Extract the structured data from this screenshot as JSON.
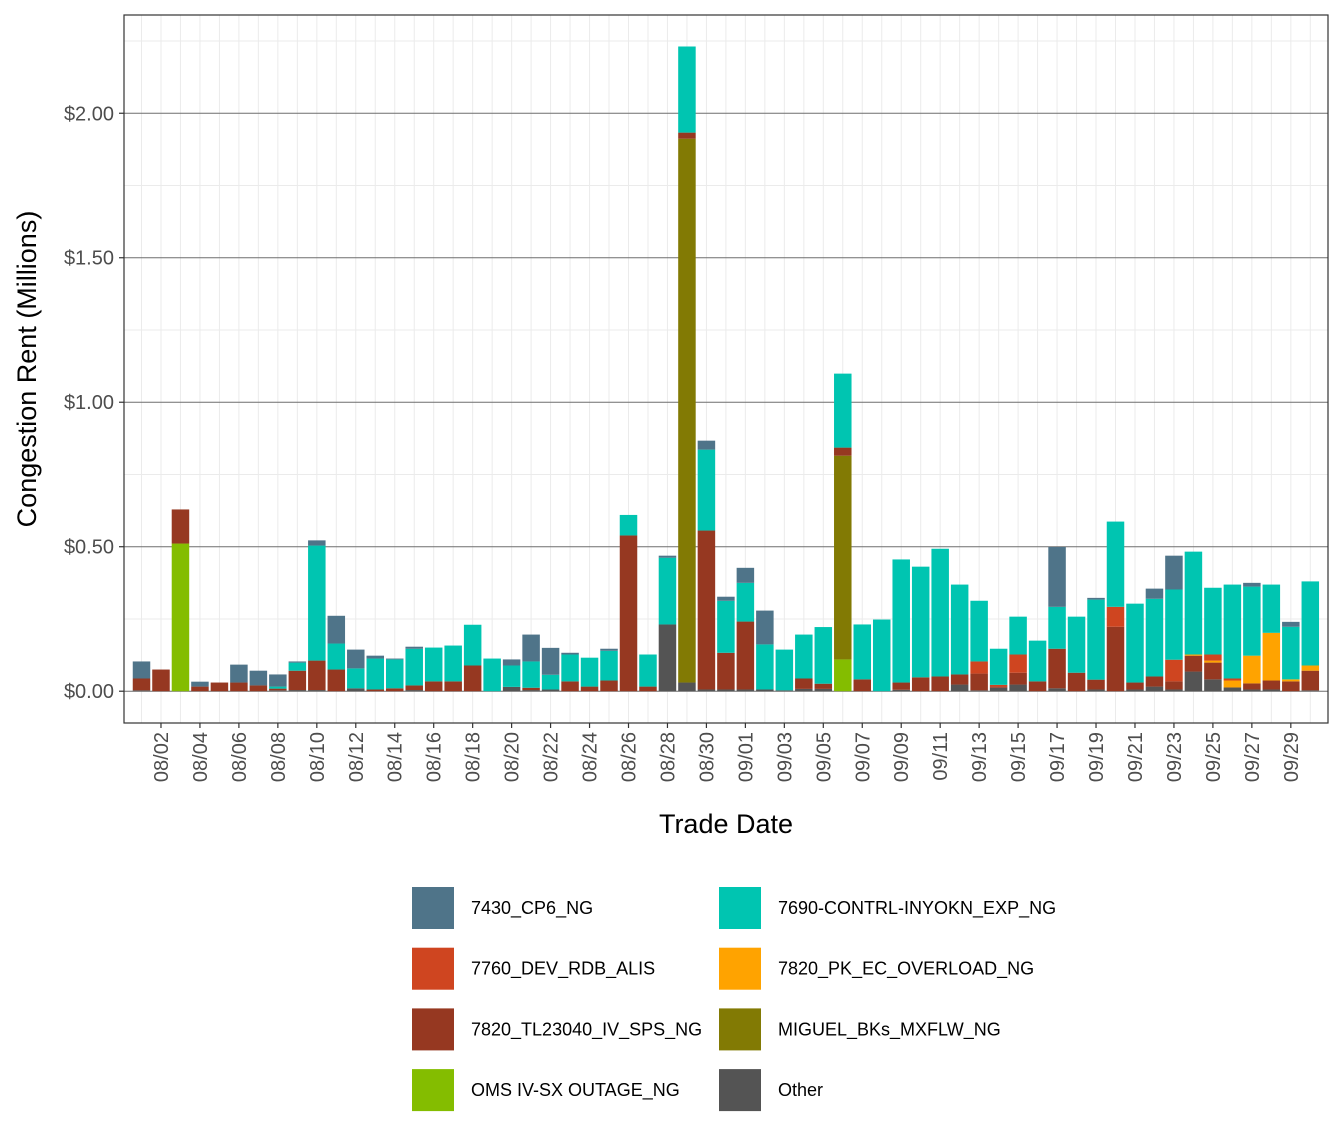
{
  "chart_data": {
    "type": "bar",
    "stacked": true,
    "xlabel": "Trade Date",
    "ylabel": "Congestion Rent (Millions)",
    "ylim": [
      -0.11,
      2.34
    ],
    "yticks": [
      0,
      0.5,
      1.0,
      1.5,
      2.0
    ],
    "ytick_labels": [
      "$0.00",
      "$0.50",
      "$1.00",
      "$1.50",
      "$2.00"
    ],
    "grid": true,
    "legend_position": "bottom",
    "categories": [
      "08/01",
      "08/02",
      "08/03",
      "08/04",
      "08/05",
      "08/06",
      "08/07",
      "08/08",
      "08/09",
      "08/10",
      "08/11",
      "08/12",
      "08/13",
      "08/14",
      "08/15",
      "08/16",
      "08/17",
      "08/18",
      "08/19",
      "08/20",
      "08/21",
      "08/22",
      "08/23",
      "08/24",
      "08/25",
      "08/26",
      "08/27",
      "08/28",
      "08/29",
      "08/30",
      "08/31",
      "09/01",
      "09/02",
      "09/03",
      "09/04",
      "09/05",
      "09/06",
      "09/07",
      "09/08",
      "09/09",
      "09/10",
      "09/11",
      "09/12",
      "09/13",
      "09/14",
      "09/15",
      "09/16",
      "09/17",
      "09/18",
      "09/19",
      "09/20",
      "09/21",
      "09/22",
      "09/23",
      "09/24",
      "09/25",
      "09/26",
      "09/27",
      "09/28",
      "09/29",
      "09/30"
    ],
    "xtick_labels": [
      "08/02",
      "08/04",
      "08/06",
      "08/08",
      "08/10",
      "08/12",
      "08/14",
      "08/16",
      "08/18",
      "08/20",
      "08/22",
      "08/24",
      "08/26",
      "08/28",
      "08/30",
      "09/01",
      "09/03",
      "09/05",
      "09/07",
      "09/09",
      "09/11",
      "09/13",
      "09/15",
      "09/17",
      "09/19",
      "09/21",
      "09/23",
      "09/25",
      "09/27",
      "09/29"
    ],
    "series": [
      {
        "name": "7430_CP6_NG",
        "color": "#4f7489",
        "values": [
          0.059,
          0,
          0,
          0.017,
          0,
          0.062,
          0.051,
          0.042,
          0.004,
          0.018,
          0.096,
          0.065,
          0.01,
          0.003,
          0.007,
          0,
          0,
          0,
          0,
          0.021,
          0.093,
          0.093,
          0.006,
          0,
          0.007,
          0,
          0,
          0.007,
          0,
          0.031,
          0.014,
          0.052,
          0.117,
          0,
          0,
          0,
          0,
          0,
          0,
          0,
          0,
          0,
          0,
          0,
          0,
          0,
          0,
          0.207,
          0,
          0.006,
          0,
          0,
          0.035,
          0.117,
          0,
          0,
          0,
          0.013,
          0,
          0.017,
          0
        ]
      },
      {
        "name": "7690-CONTRL-INYOKN_EXP_NG",
        "color": "#00c5b1",
        "values": [
          0,
          0,
          0,
          0,
          0,
          0,
          0,
          0.007,
          0.028,
          0.398,
          0.09,
          0.069,
          0.107,
          0.1,
          0.127,
          0.117,
          0.124,
          0.141,
          0.113,
          0.074,
          0.091,
          0.051,
          0.093,
          0.1,
          0.103,
          0.071,
          0.111,
          0.231,
          0.298,
          0.28,
          0.18,
          0.134,
          0.156,
          0.141,
          0.152,
          0.196,
          0.256,
          0.19,
          0.248,
          0.426,
          0.383,
          0.442,
          0.311,
          0.21,
          0.125,
          0.131,
          0.141,
          0.145,
          0.194,
          0.277,
          0.295,
          0.273,
          0.269,
          0.243,
          0.356,
          0.231,
          0.325,
          0.239,
          0.167,
          0.182,
          0.291
        ]
      },
      {
        "name": "7760_DEV_RDB_ALIS",
        "color": "#cf4520",
        "values": [
          0,
          0,
          0,
          0,
          0,
          0,
          0,
          0,
          0,
          0,
          0,
          0,
          0,
          0,
          0,
          0,
          0,
          0,
          0,
          0,
          0,
          0,
          0,
          0,
          0,
          0,
          0,
          0,
          0,
          0,
          0,
          0,
          0,
          0,
          0,
          0,
          0,
          0,
          0,
          0,
          0,
          0,
          0,
          0.042,
          0.006,
          0.063,
          0,
          0,
          0,
          0,
          0.069,
          0,
          0,
          0.075,
          0,
          0.021,
          0.007,
          0,
          0,
          0,
          0
        ]
      },
      {
        "name": "7820_PK_EC_OVERLOAD_NG",
        "color": "#ffa300",
        "values": [
          0,
          0,
          0,
          0,
          0,
          0,
          0,
          0,
          0,
          0,
          0,
          0,
          0,
          0,
          0,
          0,
          0,
          0,
          0,
          0,
          0,
          0,
          0,
          0,
          0,
          0,
          0,
          0,
          0,
          0,
          0,
          0,
          0,
          0,
          0,
          0,
          0,
          0,
          0,
          0,
          0,
          0,
          0,
          0,
          0,
          0,
          0,
          0,
          0,
          0,
          0,
          0,
          0,
          0,
          0.004,
          0.007,
          0.024,
          0.096,
          0.165,
          0.007,
          0.018
        ]
      },
      {
        "name": "7820_TL23040_IV_SPS_NG",
        "color": "#963821",
        "values": [
          0.041,
          0.075,
          0.118,
          0.016,
          0.03,
          0.03,
          0.02,
          0.006,
          0.067,
          0.102,
          0.075,
          0,
          0.006,
          0.01,
          0.016,
          0.034,
          0.034,
          0.089,
          0,
          0,
          0.008,
          0,
          0.034,
          0.016,
          0.037,
          0.539,
          0.016,
          0,
          0.021,
          0.55,
          0.127,
          0.235,
          0,
          0,
          0.036,
          0.018,
          0.028,
          0.041,
          0,
          0.025,
          0.048,
          0.051,
          0.035,
          0.058,
          0.004,
          0.041,
          0.034,
          0.137,
          0.064,
          0.034,
          0.223,
          0.024,
          0.035,
          0.028,
          0.055,
          0.058,
          0,
          0.021,
          0.031,
          0.034,
          0.068
        ]
      },
      {
        "name": "MIGUEL_BKs_MXFLW_NG",
        "color": "#827a04",
        "values": [
          0,
          0,
          0,
          0,
          0,
          0,
          0,
          0,
          0,
          0,
          0,
          0,
          0,
          0,
          0,
          0,
          0,
          0,
          0,
          0,
          0,
          0,
          0,
          0,
          0,
          0,
          0,
          0,
          1.882,
          0,
          0,
          0,
          0,
          0,
          0,
          0,
          0.705,
          0,
          0,
          0,
          0,
          0,
          0,
          0,
          0,
          0,
          0,
          0,
          0,
          0,
          0,
          0,
          0,
          0,
          0,
          0,
          0,
          0,
          0,
          0,
          0
        ]
      },
      {
        "name": "OMS IV-SX OUTAGE_NG",
        "color": "#84bd00",
        "values": [
          0,
          0,
          0.511,
          0,
          0,
          0,
          0,
          0,
          0,
          0,
          0,
          0,
          0,
          0,
          0,
          0,
          0,
          0,
          0,
          0,
          0,
          0,
          0,
          0,
          0,
          0,
          0,
          0,
          0,
          0,
          0,
          0,
          0,
          0,
          0,
          0,
          0.11,
          0,
          0,
          0,
          0,
          0,
          0,
          0,
          0,
          0,
          0,
          0,
          0,
          0,
          0,
          0,
          0,
          0,
          0,
          0,
          0,
          0,
          0,
          0,
          0
        ]
      },
      {
        "name": "Other",
        "color": "#545454",
        "values": [
          0.003,
          0,
          0,
          0,
          0,
          0,
          0,
          0.003,
          0.004,
          0.004,
          0,
          0.01,
          0,
          0,
          0.004,
          0,
          0,
          0,
          0,
          0.015,
          0.004,
          0.006,
          0,
          0,
          0,
          0,
          0,
          0.231,
          0.03,
          0.006,
          0.006,
          0.006,
          0.006,
          0.003,
          0.008,
          0.008,
          0,
          0,
          0,
          0.005,
          0,
          0,
          0.023,
          0.003,
          0.012,
          0.023,
          0,
          0.01,
          0,
          0.006,
          0,
          0.006,
          0.016,
          0.006,
          0.068,
          0.041,
          0.013,
          0.006,
          0.006,
          0,
          0.003
        ]
      }
    ]
  }
}
